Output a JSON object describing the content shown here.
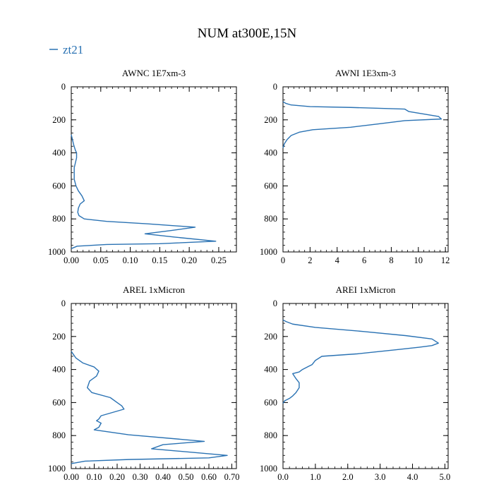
{
  "figure": {
    "title": "NUM at300E,15N",
    "legend": {
      "label": "zt21",
      "color": "#2a72b3",
      "placement": "top-left"
    }
  },
  "chart_data": [
    {
      "type": "line",
      "title": "AWNC  1E7xm-3",
      "xlim": [
        0,
        0.28
      ],
      "ylim": [
        1000,
        0
      ],
      "xticks": [
        "0.00",
        "0.05",
        "0.10",
        "0.15",
        "0.20",
        "0.25"
      ],
      "xtick_values": [
        0,
        0.05,
        0.1,
        0.15,
        0.2,
        0.25
      ],
      "yticks": [
        "0",
        "200",
        "400",
        "600",
        "800",
        "1000"
      ],
      "ytick_values": [
        0,
        200,
        400,
        600,
        800,
        1000
      ],
      "grid": false,
      "series": [
        {
          "name": "zt21",
          "color": "#2a72b3",
          "x": [
            0,
            0.002,
            0.004,
            0.007,
            0.009,
            0.009,
            0.007,
            0.005,
            0.005,
            0.005,
            0.008,
            0.012,
            0.018,
            0.022,
            0.015,
            0.012,
            0.011,
            0.013,
            0.022,
            0.06,
            0.13,
            0.21,
            0.17,
            0.125,
            0.175,
            0.245,
            0.15,
            0.06,
            0.01,
            0
          ],
          "y": [
            290,
            320,
            350,
            385,
            400,
            430,
            460,
            490,
            520,
            560,
            600,
            630,
            660,
            690,
            710,
            735,
            760,
            780,
            800,
            815,
            830,
            850,
            870,
            890,
            910,
            935,
            950,
            955,
            965,
            980
          ]
        }
      ]
    },
    {
      "type": "line",
      "title": "AWNI  1E3xm-3",
      "xlim": [
        0,
        12.2
      ],
      "ylim": [
        1000,
        0
      ],
      "xticks": [
        "0",
        "2",
        "4",
        "6",
        "8",
        "10",
        "12"
      ],
      "xtick_values": [
        0,
        2,
        4,
        6,
        8,
        10,
        12
      ],
      "yticks": [
        "0",
        "200",
        "400",
        "600",
        "800",
        "1000"
      ],
      "ytick_values": [
        0,
        200,
        400,
        600,
        800,
        1000
      ],
      "grid": false,
      "series": [
        {
          "name": "zt21",
          "color": "#2a72b3",
          "x": [
            0,
            0.2,
            0.6,
            2.0,
            5.0,
            9.0,
            9.3,
            11.5,
            11.7,
            9.0,
            7.0,
            5.0,
            2.2,
            1.2,
            0.6,
            0.3,
            0.1,
            0
          ],
          "y": [
            90,
            100,
            110,
            120,
            125,
            135,
            150,
            180,
            195,
            205,
            225,
            245,
            260,
            275,
            295,
            320,
            345,
            370
          ]
        }
      ]
    },
    {
      "type": "line",
      "title": "AREL  1xMicron",
      "xlim": [
        0,
        0.72
      ],
      "ylim": [
        1000,
        0
      ],
      "xticks": [
        "0.00",
        "0.10",
        "0.20",
        "0.30",
        "0.40",
        "0.50",
        "0.60",
        "0.70"
      ],
      "xtick_values": [
        0,
        0.1,
        0.2,
        0.3,
        0.4,
        0.5,
        0.6,
        0.7
      ],
      "yticks": [
        "0",
        "200",
        "400",
        "600",
        "800",
        "1000"
      ],
      "ytick_values": [
        0,
        200,
        400,
        600,
        800,
        1000
      ],
      "grid": false,
      "series": [
        {
          "name": "zt21",
          "color": "#2a72b3",
          "x": [
            0,
            0.01,
            0.02,
            0.05,
            0.1,
            0.12,
            0.11,
            0.08,
            0.07,
            0.09,
            0.17,
            0.2,
            0.22,
            0.23,
            0.13,
            0.12,
            0.11,
            0.13,
            0.12,
            0.1,
            0.25,
            0.58,
            0.4,
            0.35,
            0.68,
            0.6,
            0.25,
            0.06,
            0
          ],
          "y": [
            290,
            310,
            330,
            360,
            385,
            410,
            440,
            470,
            510,
            540,
            570,
            600,
            620,
            640,
            680,
            700,
            710,
            725,
            750,
            765,
            795,
            835,
            855,
            880,
            920,
            935,
            945,
            955,
            970
          ]
        }
      ]
    },
    {
      "type": "line",
      "title": "AREI  1xMicron",
      "xlim": [
        0,
        5.1
      ],
      "ylim": [
        1000,
        0
      ],
      "xticks": [
        "0.0",
        "1.0",
        "2.0",
        "3.0",
        "4.0",
        "5.0"
      ],
      "xtick_values": [
        0,
        1,
        2,
        3,
        4,
        5
      ],
      "yticks": [
        "0",
        "200",
        "400",
        "600",
        "800",
        "1000"
      ],
      "ytick_values": [
        0,
        200,
        400,
        600,
        800,
        1000
      ],
      "grid": false,
      "series": [
        {
          "name": "zt21",
          "color": "#2a72b3",
          "x": [
            0,
            0.1,
            0.3,
            1.0,
            2.5,
            3.8,
            4.6,
            4.8,
            4.6,
            4.2,
            3.5,
            2.3,
            1.2,
            1.0,
            0.9,
            0.8,
            0.6,
            0.5,
            0.3,
            0.4,
            0.5,
            0.5,
            0.4,
            0.3,
            0.2,
            0.05,
            0
          ],
          "y": [
            100,
            110,
            125,
            145,
            170,
            195,
            215,
            240,
            255,
            265,
            280,
            305,
            320,
            345,
            370,
            380,
            400,
            415,
            425,
            455,
            480,
            510,
            540,
            560,
            575,
            590,
            605
          ]
        }
      ]
    }
  ]
}
